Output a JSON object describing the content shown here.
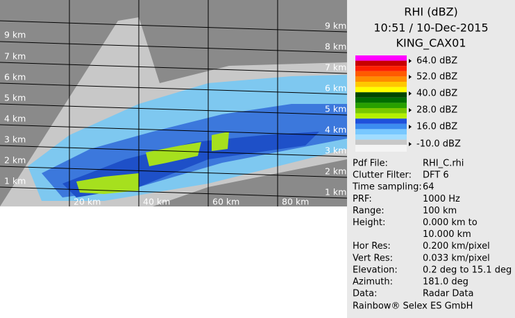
{
  "plot": {
    "left_height_labels": [
      "9 km",
      "7 km",
      "6 km",
      "5 km",
      "4 km",
      "3 km",
      "2 km",
      "1 km"
    ],
    "right_height_labels": [
      "9 km",
      "8 km",
      "7 km",
      "6 km",
      "5 km",
      "4 km",
      "3 km",
      "2 km",
      "1 km"
    ],
    "range_labels": [
      "20 km",
      "40 km",
      "60 km",
      "80 km"
    ]
  },
  "panel": {
    "title": "RHI (dBZ)",
    "time": "10:51 / 10-Dec-2015",
    "site": "KING_CAX01",
    "legend": [
      "64.0 dBZ",
      "52.0 dBZ",
      "40.0 dBZ",
      "28.0 dBZ",
      "16.0 dBZ",
      "-10.0 dBZ"
    ],
    "info": [
      [
        "Pdf File:",
        "RHI_C.rhi"
      ],
      [
        "Clutter Filter:",
        "DFT 6"
      ],
      [
        "Time sampling:",
        "64"
      ],
      [
        "PRF:",
        "1000 Hz"
      ],
      [
        "Range:",
        "100 km"
      ],
      [
        "Height:",
        "0.000 km to"
      ],
      [
        "",
        "10.000 km"
      ],
      [
        "Hor Res:",
        "0.200 km/pixel"
      ],
      [
        "Vert Res:",
        "0.033 km/pixel"
      ],
      [
        "Elevation:",
        "0.2 deg to 15.1 deg"
      ],
      [
        "Azimuth:",
        "181.0 deg"
      ],
      [
        "Data:",
        "Radar Data"
      ]
    ],
    "footer": "Rainbow® Selex ES GmbH"
  }
}
